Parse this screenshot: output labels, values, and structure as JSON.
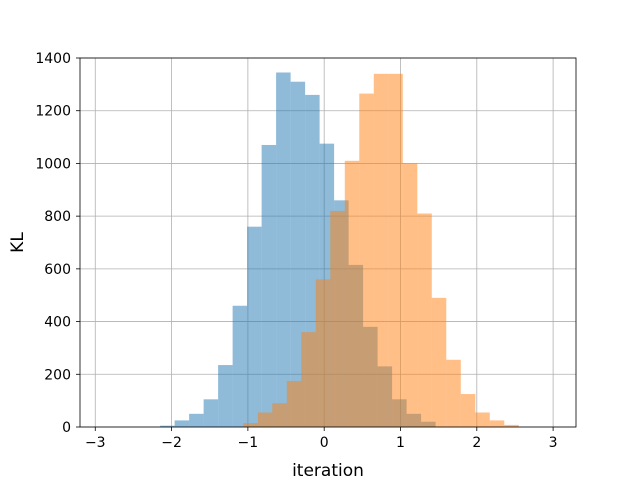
{
  "chart_data": {
    "type": "bar",
    "subtype": "overlapping-histogram",
    "xlabel": "iteration",
    "ylabel": "KL",
    "xlim": [
      -3.2,
      3.3
    ],
    "ylim": [
      0,
      1400
    ],
    "xticks": [
      -3,
      -2,
      -1,
      0,
      1,
      2,
      3
    ],
    "yticks": [
      0,
      200,
      400,
      600,
      800,
      1000,
      1200,
      1400
    ],
    "grid": true,
    "series": [
      {
        "color": "#1f77b4",
        "alpha": 0.5,
        "bins": [
          {
            "x0": -2.15,
            "x1": -1.96,
            "value": 5
          },
          {
            "x0": -1.96,
            "x1": -1.77,
            "value": 25
          },
          {
            "x0": -1.77,
            "x1": -1.58,
            "value": 50
          },
          {
            "x0": -1.58,
            "x1": -1.39,
            "value": 105
          },
          {
            "x0": -1.39,
            "x1": -1.2,
            "value": 235
          },
          {
            "x0": -1.2,
            "x1": -1.01,
            "value": 460
          },
          {
            "x0": -1.01,
            "x1": -0.82,
            "value": 760
          },
          {
            "x0": -0.82,
            "x1": -0.63,
            "value": 1070
          },
          {
            "x0": -0.63,
            "x1": -0.44,
            "value": 1345
          },
          {
            "x0": -0.44,
            "x1": -0.25,
            "value": 1310
          },
          {
            "x0": -0.25,
            "x1": -0.06,
            "value": 1260
          },
          {
            "x0": -0.06,
            "x1": 0.13,
            "value": 1075
          },
          {
            "x0": 0.13,
            "x1": 0.32,
            "value": 860
          },
          {
            "x0": 0.32,
            "x1": 0.51,
            "value": 615
          },
          {
            "x0": 0.51,
            "x1": 0.7,
            "value": 380
          },
          {
            "x0": 0.7,
            "x1": 0.89,
            "value": 230
          },
          {
            "x0": 0.89,
            "x1": 1.08,
            "value": 105
          },
          {
            "x0": 1.08,
            "x1": 1.27,
            "value": 50
          },
          {
            "x0": 1.27,
            "x1": 1.46,
            "value": 20
          }
        ]
      },
      {
        "color": "#ff7f0e",
        "alpha": 0.5,
        "bins": [
          {
            "x0": -1.06,
            "x1": -0.87,
            "value": 15
          },
          {
            "x0": -0.87,
            "x1": -0.68,
            "value": 55
          },
          {
            "x0": -0.68,
            "x1": -0.49,
            "value": 90
          },
          {
            "x0": -0.49,
            "x1": -0.3,
            "value": 175
          },
          {
            "x0": -0.3,
            "x1": -0.11,
            "value": 360
          },
          {
            "x0": -0.11,
            "x1": 0.08,
            "value": 560
          },
          {
            "x0": 0.08,
            "x1": 0.27,
            "value": 820
          },
          {
            "x0": 0.27,
            "x1": 0.46,
            "value": 1010
          },
          {
            "x0": 0.46,
            "x1": 0.65,
            "value": 1265
          },
          {
            "x0": 0.65,
            "x1": 0.84,
            "value": 1340
          },
          {
            "x0": 0.84,
            "x1": 1.03,
            "value": 1340
          },
          {
            "x0": 1.03,
            "x1": 1.22,
            "value": 1000
          },
          {
            "x0": 1.22,
            "x1": 1.41,
            "value": 810
          },
          {
            "x0": 1.41,
            "x1": 1.6,
            "value": 490
          },
          {
            "x0": 1.6,
            "x1": 1.79,
            "value": 255
          },
          {
            "x0": 1.79,
            "x1": 1.98,
            "value": 125
          },
          {
            "x0": 1.98,
            "x1": 2.17,
            "value": 55
          },
          {
            "x0": 2.17,
            "x1": 2.36,
            "value": 25
          },
          {
            "x0": 2.36,
            "x1": 2.55,
            "value": 8
          }
        ]
      }
    ]
  }
}
